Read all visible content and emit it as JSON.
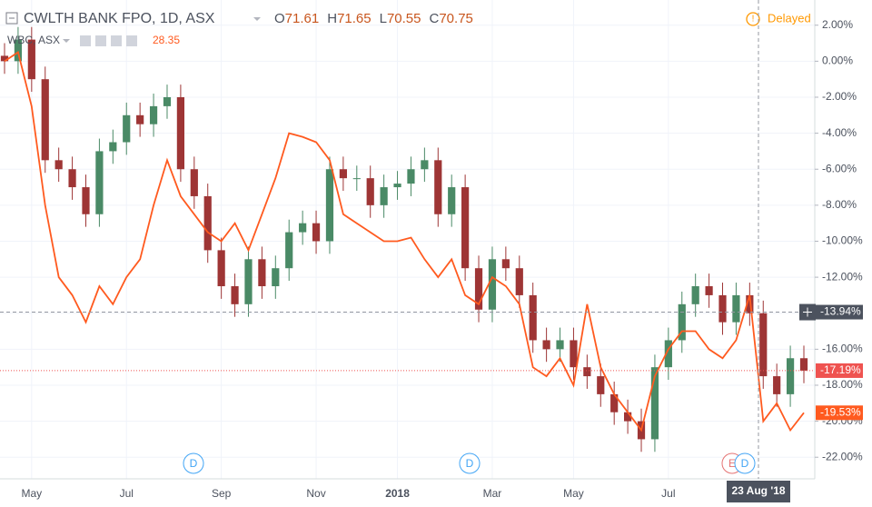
{
  "chart_data": {
    "type": "candlestick",
    "title": "CWLTH BANK FPO, 1D, ASX",
    "ohlc": [
      {
        "label": "O",
        "value": 71.61
      },
      {
        "label": "H",
        "value": 71.65
      },
      {
        "label": "L",
        "value": 70.55
      },
      {
        "label": "C",
        "value": 70.75
      }
    ],
    "status": "Delayed",
    "compare": {
      "name": "WBC, ASX",
      "value": 28.35
    },
    "categories": [
      null,
      null,
      "May",
      null,
      null,
      null,
      null,
      null,
      null,
      "Jul",
      null,
      null,
      null,
      null,
      null,
      null,
      "Sep",
      null,
      null,
      null,
      null,
      null,
      null,
      "Nov",
      null,
      null,
      null,
      null,
      null,
      "2018",
      null,
      null,
      null,
      null,
      null,
      null,
      "Mar",
      null,
      null,
      null,
      null,
      null,
      "May",
      null,
      null,
      null,
      null,
      null,
      null,
      "Jul",
      null,
      null,
      null,
      null,
      null,
      null,
      null,
      null,
      null,
      null
    ],
    "open": [
      0.3,
      0,
      1.2,
      -1,
      -5.5,
      -6,
      -7,
      -8.5,
      -5,
      -4.5,
      -3,
      -3.5,
      -2.5,
      -2,
      -6,
      -7.5,
      -10.5,
      -12.5,
      -13.5,
      -11,
      -12.5,
      -11.5,
      -9.5,
      -9,
      -10,
      -6,
      -6.5,
      -6.5,
      -8,
      -7,
      -6.8,
      -6,
      -5.5,
      -8.5,
      -7,
      -11.5,
      -13.8,
      -11,
      -11.5,
      -13,
      -15.5,
      -16,
      -15.5,
      -17,
      -17.5,
      -18.5,
      -19.5,
      -20,
      -21,
      -17,
      -15.5,
      -13.5,
      -12.5,
      -13,
      -14.5,
      -13,
      -14,
      -17.5,
      -18.5,
      -16.5
    ],
    "high": [
      1,
      1.9,
      1.9,
      -0.3,
      -4.8,
      -5.3,
      -6.3,
      -4.3,
      -3.8,
      -2.3,
      -2.3,
      -1.8,
      -1.3,
      -1.3,
      -5.3,
      -6.8,
      -9.8,
      -11.8,
      -10.3,
      -10.3,
      -10.8,
      -8.8,
      -8.3,
      -8.3,
      -5.3,
      -5.3,
      -5.8,
      -5.8,
      -6.3,
      -6.1,
      -5.3,
      -4.8,
      -4.8,
      -6.3,
      -6.3,
      -10.8,
      -10.3,
      -10.3,
      -10.8,
      -12.3,
      -14.8,
      -14.8,
      -14.8,
      -16.3,
      -16.8,
      -17.8,
      -18.8,
      -19.3,
      -16.3,
      -14.8,
      -12.8,
      -11.8,
      -11.8,
      -12.3,
      -12.3,
      -12.3,
      -13.3,
      -16.8,
      -15.8,
      -15.8
    ],
    "low": [
      -0.7,
      -0.7,
      -1.7,
      -6.2,
      -6.7,
      -7.7,
      -9.2,
      -9.2,
      -5.7,
      -5.2,
      -4.2,
      -4.2,
      -3.2,
      -6.7,
      -8.2,
      -11.2,
      -13.2,
      -14.2,
      -14.2,
      -13.2,
      -13.2,
      -12.2,
      -10.2,
      -10.7,
      -10.7,
      -7.2,
      -7.2,
      -8.7,
      -8.7,
      -7.7,
      -7.5,
      -6.7,
      -9.2,
      -9.2,
      -12.2,
      -14.5,
      -14.5,
      -12.2,
      -13.7,
      -16.2,
      -16.7,
      -16.7,
      -17.7,
      -18.2,
      -19.2,
      -20.2,
      -20.7,
      -21.7,
      -21.7,
      -17.7,
      -16.2,
      -14.2,
      -13.7,
      -15.2,
      -15.2,
      -14.7,
      -18.2,
      -19.2,
      -19.2,
      -17.89
    ],
    "close": [
      0,
      1.2,
      -1,
      -5.5,
      -6,
      -7,
      -8.5,
      -5,
      -4.5,
      -3,
      -3.5,
      -2.5,
      -2,
      -6,
      -7.5,
      -10.5,
      -12.5,
      -13.5,
      -11,
      -12.5,
      -11.5,
      -9.5,
      -9,
      -10,
      -6,
      -6.5,
      -6.5,
      -8,
      -7,
      -6.8,
      -6,
      -5.5,
      -8.5,
      -7,
      -11.5,
      -13.8,
      -11,
      -11.5,
      -13,
      -15.5,
      -16,
      -15.5,
      -17,
      -17.5,
      -18.5,
      -19.5,
      -20,
      -21,
      -17,
      -15.5,
      -13.5,
      -12.5,
      -13,
      -14.5,
      -13,
      -14,
      -17.5,
      -18.5,
      -16.5,
      -17.19
    ],
    "up_color": "#4a8a66",
    "down_color": "#9e3535",
    "last_label": "-17.19%",
    "last_color": "#ef5350",
    "series": [
      {
        "name": "WBC, ASX",
        "color": "#ff5a1f",
        "last_label": "-19.53%",
        "values": [
          0,
          0.5,
          -2.5,
          -8,
          -12,
          -13,
          -14.5,
          -12.5,
          -13.5,
          -12,
          -11,
          -8,
          -5.5,
          -7.5,
          -8.5,
          -9.5,
          -10,
          -9,
          -10.5,
          -8.5,
          -6.5,
          -4,
          -4.2,
          -4.5,
          -5.5,
          -8.5,
          -9,
          -9.5,
          -10,
          -10,
          -9.8,
          -11,
          -12,
          -11,
          -13,
          -13.5,
          -12,
          -12.5,
          -13.5,
          -17,
          -17.5,
          -16.5,
          -18,
          -13.5,
          -17,
          -18.5,
          -19.5,
          -20.5,
          -17.5,
          -16,
          -15,
          -15,
          -16,
          -16.5,
          -15.5,
          -13,
          -20,
          -19,
          -20.5,
          -19.53
        ]
      }
    ],
    "crosshair": {
      "value": -13.94,
      "label": "-13.94%",
      "date": "23 Aug '18"
    },
    "events": [
      "D",
      "D",
      "E",
      "D"
    ],
    "ylim": [
      -23.2,
      3.4
    ],
    "yticks": [
      {
        "value": 2,
        "label": "2.00%"
      },
      {
        "value": 0,
        "label": "0.00%"
      },
      {
        "value": -2,
        "label": "-2.00%"
      },
      {
        "value": -4,
        "label": "-4.00%"
      },
      {
        "value": -6,
        "label": "-6.00%"
      },
      {
        "value": -8,
        "label": "-8.00%"
      },
      {
        "value": -10,
        "label": "-10.00%"
      },
      {
        "value": -12,
        "label": "-12.00%"
      },
      {
        "value": -14,
        "label": "-14.00%"
      },
      {
        "value": -16,
        "label": "-16.00%"
      },
      {
        "value": -18,
        "label": "-18.00%"
      },
      {
        "value": -20,
        "label": "-20.00%"
      },
      {
        "value": -22,
        "label": "-22.00%"
      }
    ],
    "grid": true
  }
}
